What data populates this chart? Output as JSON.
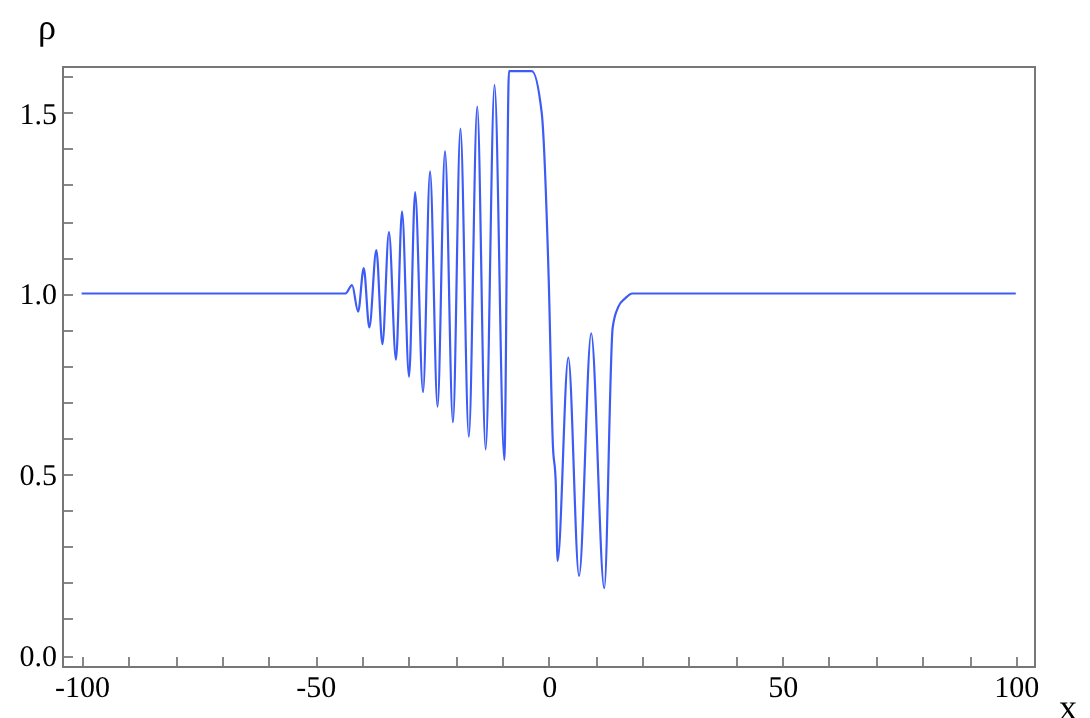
{
  "chart_data": {
    "type": "line",
    "xlabel": "x",
    "ylabel": "ρ",
    "x": [
      -100,
      -43.5,
      -42.1,
      -40.8,
      -39.6,
      -38.4,
      -36.9,
      -35.6,
      -34.2,
      -32.7,
      -31.4,
      -29.9,
      -28.6,
      -26.9,
      -25.4,
      -23.8,
      -22.2,
      -20.5,
      -18.9,
      -17.1,
      -15.3,
      -13.5,
      -11.6,
      -9.5,
      -8.5,
      -3.6,
      -1.5,
      0,
      0.9,
      1.5,
      1.9,
      4.2,
      6.5,
      9.1,
      11.9,
      13.7,
      14.9,
      16.4,
      17.9,
      100
    ],
    "series": [
      {
        "color": "#3d5cf5",
        "values": [
          1.0,
          1.0,
          1.023,
          0.95,
          1.07,
          0.906,
          1.12,
          0.86,
          1.17,
          0.817,
          1.227,
          0.77,
          1.28,
          0.727,
          1.338,
          0.687,
          1.394,
          0.644,
          1.456,
          0.604,
          1.517,
          0.569,
          1.577,
          0.54,
          1.615,
          1.615,
          1.5,
          1.04,
          0.58,
          0.48,
          0.26,
          0.823,
          0.219,
          0.89,
          0.185,
          0.906,
          0.963,
          0.987,
          1.0,
          1.0
        ]
      }
    ],
    "xlim": [
      -104.2,
      103.9
    ],
    "ylim": [
      -0.03,
      1.629
    ],
    "xticks": [
      -100,
      {
        "value": -90,
        "label": null
      },
      {
        "value": -80,
        "label": null
      },
      {
        "value": -70,
        "label": null
      },
      {
        "value": -60,
        "label": null
      },
      -50,
      {
        "value": -40,
        "label": null
      },
      {
        "value": -30,
        "label": null
      },
      {
        "value": -20,
        "label": null
      },
      {
        "value": -10,
        "label": null
      },
      0,
      {
        "value": 10,
        "label": null
      },
      {
        "value": 20,
        "label": null
      },
      {
        "value": 30,
        "label": null
      },
      {
        "value": 40,
        "label": null
      },
      50,
      {
        "value": 60,
        "label": null
      },
      {
        "value": 70,
        "label": null
      },
      {
        "value": 80,
        "label": null
      },
      {
        "value": 90,
        "label": null
      },
      100
    ],
    "yticks": [
      {
        "value": 0,
        "label": "0.0"
      },
      {
        "value": 0.1,
        "label": null
      },
      {
        "value": 0.2,
        "label": null
      },
      {
        "value": 0.3,
        "label": null
      },
      {
        "value": 0.4,
        "label": null
      },
      0.5,
      {
        "value": 0.6,
        "label": null
      },
      {
        "value": 0.7,
        "label": null
      },
      {
        "value": 0.8,
        "label": null
      },
      {
        "value": 0.9,
        "label": null
      },
      {
        "value": 1,
        "label": "1.0"
      },
      {
        "value": 1.1,
        "label": null
      },
      {
        "value": 1.2,
        "label": null
      },
      {
        "value": 1.3,
        "label": null
      },
      {
        "value": 1.4,
        "label": null
      },
      1.5,
      {
        "value": 1.6,
        "label": null
      }
    ],
    "grid": false,
    "marker": "none",
    "line_style": "solid"
  }
}
